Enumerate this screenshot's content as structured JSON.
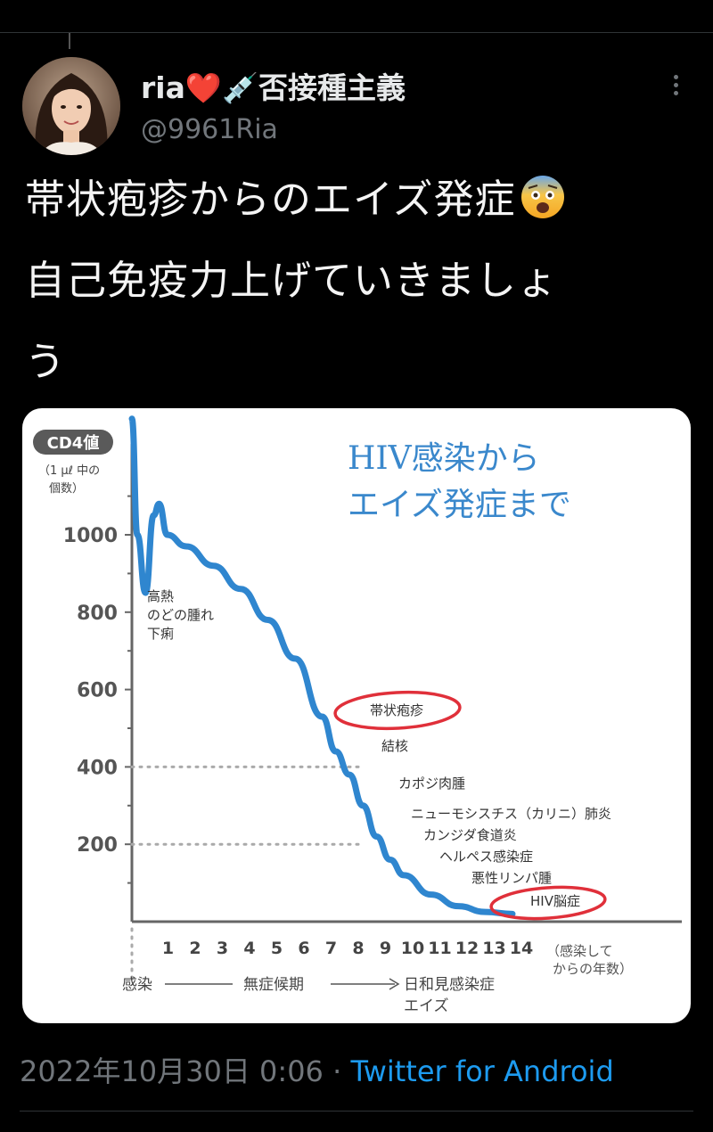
{
  "tweet": {
    "display_name": "ria❤️💉否接種主義",
    "handle": "@9961Ria",
    "text_line1": "帯状疱疹からのエイズ発症",
    "text_line2": "自己免疫力上げていきましょ",
    "text_line3": "う",
    "timestamp": "2022年10月30日 0:06",
    "separator": " · ",
    "source": "Twitter for Android"
  },
  "icons": {
    "avatar": "profile-photo",
    "more": "more-vertical-icon",
    "emoji": "anxious-face-emoji"
  },
  "colors": {
    "background": "#000000",
    "text": "#e7e9ea",
    "muted": "#71767b",
    "link": "#1d9bf0",
    "curve": "#2f86cf",
    "circle": "#e0303a",
    "title": "#3a88cc"
  },
  "chart_data": {
    "type": "line",
    "title_line1": "HIV感染から",
    "title_line2": "エイズ発症まで",
    "ylabel_badge": "CD4値",
    "ylabel_sub": "（1μℓ中の個数）",
    "ylabel_sub1": "（1 μℓ 中の",
    "ylabel_sub2": "個数）",
    "xlabel": "（感染してからの年数）",
    "xlabel1": "（感染して",
    "xlabel2": "からの年数）",
    "y_ticks": [
      "1000",
      "800",
      "600",
      "400",
      "200"
    ],
    "x_ticks": [
      "1",
      "2",
      "3",
      "4",
      "5",
      "6",
      "7",
      "8",
      "9",
      "10",
      "11",
      "12",
      "13",
      "14"
    ],
    "ylim": [
      0,
      1350
    ],
    "xlim": [
      0,
      14.5
    ],
    "dotted_lines": [
      400,
      200
    ],
    "series": [
      {
        "x": [
          0,
          0.2,
          0.5,
          0.8,
          1.0,
          1.3,
          2,
          3,
          4,
          5,
          6,
          7,
          7.5,
          8,
          8.5,
          9,
          9.5,
          10,
          11,
          12,
          13,
          14
        ],
        "y": [
          1300,
          1000,
          850,
          1050,
          1080,
          1000,
          970,
          920,
          860,
          780,
          680,
          530,
          440,
          380,
          300,
          220,
          160,
          120,
          70,
          40,
          25,
          20
        ]
      }
    ],
    "annotations": {
      "early_symptoms": [
        "高熱",
        "のどの腫れ",
        "下痢"
      ],
      "herpes_zoster": "帯状疱疹",
      "tuberculosis": "結核",
      "kaposi": "カポジ肉腫",
      "pneumocystis": "ニューモシスチス（カリニ）肺炎",
      "candida": "カンジダ食道炎",
      "herpes": "ヘルペス感染症",
      "lymphoma": "悪性リンパ腫",
      "hiv_encephalopathy": "HIV脳症"
    },
    "phases": {
      "infection": "感染",
      "asymptomatic": "無症候期",
      "opportunistic": "日和見感染症",
      "aids": "エイズ"
    }
  }
}
